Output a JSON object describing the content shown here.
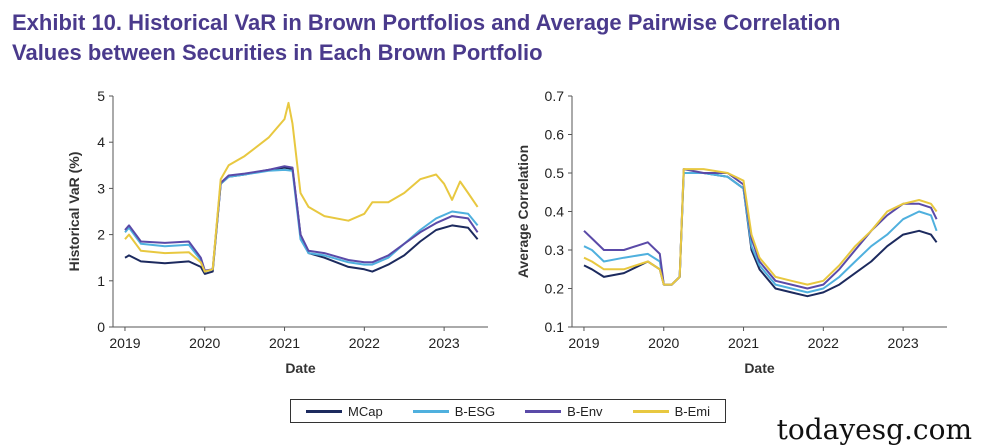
{
  "title_line1": "Exhibit 10. Historical VaR in Brown Portfolios and Average Pairwise Correlation",
  "title_line2": "Values between Securities in Each Brown Portfolio",
  "watermark": "todayesg.com",
  "legend": [
    {
      "name": "MCap",
      "color": "#1c2a5e"
    },
    {
      "name": "B-ESG",
      "color": "#4fb0de"
    },
    {
      "name": "B-Env",
      "color": "#5a4aa8"
    },
    {
      "name": "B-Emi",
      "color": "#e8c840"
    }
  ],
  "chart_data": [
    {
      "type": "line",
      "title": "",
      "xlabel": "Date",
      "ylabel": "Historical VaR (%)",
      "xlim": [
        2018.85,
        2023.55
      ],
      "ylim": [
        0,
        5
      ],
      "xticks": [
        2019,
        2020,
        2021,
        2022,
        2023
      ],
      "yticks": [
        0,
        1,
        2,
        3,
        4,
        5
      ],
      "ytick_labels": [
        "0",
        "1",
        "2",
        "3",
        "4",
        "5"
      ],
      "series": [
        {
          "name": "MCap",
          "color": "#1c2a5e",
          "x": [
            2019.0,
            2019.05,
            2019.2,
            2019.5,
            2019.8,
            2019.95,
            2020.0,
            2020.1,
            2020.2,
            2020.3,
            2020.5,
            2020.8,
            2021.0,
            2021.1,
            2021.2,
            2021.3,
            2021.5,
            2021.8,
            2022.0,
            2022.1,
            2022.3,
            2022.5,
            2022.7,
            2022.9,
            2023.1,
            2023.3,
            2023.42
          ],
          "y": [
            1.5,
            1.55,
            1.42,
            1.38,
            1.42,
            1.3,
            1.15,
            1.2,
            3.1,
            3.25,
            3.3,
            3.4,
            3.45,
            3.42,
            2.0,
            1.6,
            1.5,
            1.3,
            1.25,
            1.2,
            1.35,
            1.55,
            1.85,
            2.1,
            2.2,
            2.15,
            1.9
          ]
        },
        {
          "name": "B-ESG",
          "color": "#4fb0de",
          "x": [
            2019.0,
            2019.05,
            2019.2,
            2019.5,
            2019.8,
            2019.95,
            2020.0,
            2020.1,
            2020.2,
            2020.3,
            2020.5,
            2020.8,
            2021.0,
            2021.1,
            2021.2,
            2021.3,
            2021.5,
            2021.8,
            2022.0,
            2022.1,
            2022.3,
            2022.5,
            2022.7,
            2022.9,
            2023.1,
            2023.3,
            2023.42
          ],
          "y": [
            2.05,
            2.15,
            1.8,
            1.75,
            1.78,
            1.45,
            1.2,
            1.25,
            3.1,
            3.25,
            3.3,
            3.38,
            3.4,
            3.38,
            1.9,
            1.6,
            1.55,
            1.4,
            1.35,
            1.35,
            1.5,
            1.8,
            2.1,
            2.35,
            2.5,
            2.45,
            2.2
          ]
        },
        {
          "name": "B-Env",
          "color": "#5a4aa8",
          "x": [
            2019.0,
            2019.05,
            2019.2,
            2019.5,
            2019.8,
            2019.95,
            2020.0,
            2020.1,
            2020.2,
            2020.3,
            2020.5,
            2020.8,
            2021.0,
            2021.1,
            2021.2,
            2021.3,
            2021.5,
            2021.8,
            2022.0,
            2022.1,
            2022.3,
            2022.5,
            2022.7,
            2022.9,
            2023.1,
            2023.3,
            2023.42
          ],
          "y": [
            2.1,
            2.2,
            1.85,
            1.82,
            1.85,
            1.5,
            1.22,
            1.25,
            3.12,
            3.28,
            3.32,
            3.4,
            3.48,
            3.45,
            2.0,
            1.65,
            1.6,
            1.45,
            1.4,
            1.4,
            1.55,
            1.8,
            2.05,
            2.25,
            2.4,
            2.35,
            2.05
          ]
        },
        {
          "name": "B-Emi",
          "color": "#e8c840",
          "x": [
            2019.0,
            2019.05,
            2019.2,
            2019.5,
            2019.8,
            2019.95,
            2020.0,
            2020.1,
            2020.2,
            2020.3,
            2020.5,
            2020.8,
            2021.0,
            2021.05,
            2021.1,
            2021.2,
            2021.3,
            2021.5,
            2021.8,
            2022.0,
            2022.1,
            2022.3,
            2022.5,
            2022.7,
            2022.9,
            2023.0,
            2023.1,
            2023.2,
            2023.3,
            2023.42
          ],
          "y": [
            1.9,
            2.0,
            1.65,
            1.6,
            1.62,
            1.4,
            1.2,
            1.25,
            3.2,
            3.5,
            3.7,
            4.1,
            4.5,
            4.85,
            4.4,
            2.9,
            2.6,
            2.4,
            2.3,
            2.45,
            2.7,
            2.7,
            2.9,
            3.2,
            3.3,
            3.1,
            2.75,
            3.15,
            2.9,
            2.6
          ]
        }
      ]
    },
    {
      "type": "line",
      "title": "",
      "xlabel": "Date",
      "ylabel": "Average Correlation",
      "xlim": [
        2018.85,
        2023.55
      ],
      "ylim": [
        0.1,
        0.7
      ],
      "xticks": [
        2019,
        2020,
        2021,
        2022,
        2023
      ],
      "yticks": [
        0.1,
        0.2,
        0.3,
        0.4,
        0.5,
        0.6,
        0.7
      ],
      "ytick_labels": [
        "0.1",
        "0.2",
        "0.3",
        "0.4",
        "0.5",
        "0.6",
        "0.7"
      ],
      "series": [
        {
          "name": "MCap",
          "color": "#1c2a5e",
          "x": [
            2019.0,
            2019.1,
            2019.25,
            2019.5,
            2019.8,
            2019.95,
            2020.0,
            2020.1,
            2020.2,
            2020.25,
            2020.5,
            2020.8,
            2021.0,
            2021.1,
            2021.2,
            2021.4,
            2021.6,
            2021.8,
            2022.0,
            2022.2,
            2022.4,
            2022.6,
            2022.8,
            2023.0,
            2023.2,
            2023.35,
            2023.42
          ],
          "y": [
            0.26,
            0.25,
            0.23,
            0.24,
            0.27,
            0.25,
            0.21,
            0.21,
            0.23,
            0.5,
            0.5,
            0.49,
            0.46,
            0.3,
            0.25,
            0.2,
            0.19,
            0.18,
            0.19,
            0.21,
            0.24,
            0.27,
            0.31,
            0.34,
            0.35,
            0.34,
            0.32
          ]
        },
        {
          "name": "B-ESG",
          "color": "#4fb0de",
          "x": [
            2019.0,
            2019.1,
            2019.25,
            2019.5,
            2019.8,
            2019.95,
            2020.0,
            2020.1,
            2020.2,
            2020.25,
            2020.5,
            2020.8,
            2021.0,
            2021.1,
            2021.2,
            2021.4,
            2021.6,
            2021.8,
            2022.0,
            2022.2,
            2022.4,
            2022.6,
            2022.8,
            2023.0,
            2023.2,
            2023.35,
            2023.42
          ],
          "y": [
            0.31,
            0.3,
            0.27,
            0.28,
            0.29,
            0.27,
            0.21,
            0.21,
            0.23,
            0.5,
            0.5,
            0.49,
            0.46,
            0.31,
            0.26,
            0.21,
            0.2,
            0.19,
            0.2,
            0.23,
            0.27,
            0.31,
            0.34,
            0.38,
            0.4,
            0.39,
            0.35
          ]
        },
        {
          "name": "B-Env",
          "color": "#5a4aa8",
          "x": [
            2019.0,
            2019.1,
            2019.25,
            2019.5,
            2019.8,
            2019.95,
            2020.0,
            2020.1,
            2020.2,
            2020.25,
            2020.5,
            2020.8,
            2021.0,
            2021.1,
            2021.2,
            2021.4,
            2021.6,
            2021.8,
            2022.0,
            2022.2,
            2022.4,
            2022.6,
            2022.8,
            2023.0,
            2023.2,
            2023.35,
            2023.42
          ],
          "y": [
            0.35,
            0.33,
            0.3,
            0.3,
            0.32,
            0.29,
            0.21,
            0.21,
            0.23,
            0.51,
            0.5,
            0.5,
            0.47,
            0.33,
            0.27,
            0.22,
            0.21,
            0.2,
            0.21,
            0.25,
            0.3,
            0.35,
            0.39,
            0.42,
            0.42,
            0.41,
            0.38
          ]
        },
        {
          "name": "B-Emi",
          "color": "#e8c840",
          "x": [
            2019.0,
            2019.1,
            2019.25,
            2019.5,
            2019.8,
            2019.95,
            2020.0,
            2020.1,
            2020.2,
            2020.25,
            2020.5,
            2020.8,
            2021.0,
            2021.1,
            2021.2,
            2021.4,
            2021.6,
            2021.8,
            2022.0,
            2022.2,
            2022.4,
            2022.6,
            2022.8,
            2023.0,
            2023.2,
            2023.35,
            2023.42
          ],
          "y": [
            0.28,
            0.27,
            0.25,
            0.25,
            0.27,
            0.25,
            0.21,
            0.21,
            0.23,
            0.51,
            0.51,
            0.5,
            0.48,
            0.34,
            0.28,
            0.23,
            0.22,
            0.21,
            0.22,
            0.26,
            0.31,
            0.35,
            0.4,
            0.42,
            0.43,
            0.42,
            0.4
          ]
        }
      ]
    }
  ]
}
